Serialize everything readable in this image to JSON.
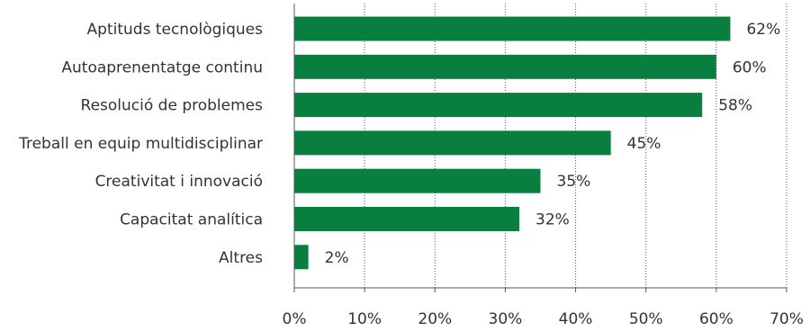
{
  "chart_data": {
    "type": "bar",
    "orientation": "horizontal",
    "categories": [
      "Aptituds tecnològiques",
      "Autoaprenentatge continu",
      "Resolució de problemes",
      "Treball en equip multidisciplinar",
      "Creativitat i innovació",
      "Capacitat analítica",
      "Altres"
    ],
    "values": [
      62,
      60,
      58,
      45,
      35,
      32,
      2
    ],
    "value_labels": [
      "62%",
      "60%",
      "58%",
      "45%",
      "35%",
      "32%",
      "2%"
    ],
    "x_ticks": [
      0,
      10,
      20,
      30,
      40,
      50,
      60,
      70
    ],
    "x_tick_labels": [
      "0%",
      "10%",
      "20%",
      "30%",
      "40%",
      "50%",
      "60%",
      "70%"
    ],
    "xlim": [
      0,
      70
    ],
    "grid": "vertical dotted",
    "bar_color": "#087f3f",
    "title": "",
    "xlabel": "",
    "ylabel": ""
  }
}
